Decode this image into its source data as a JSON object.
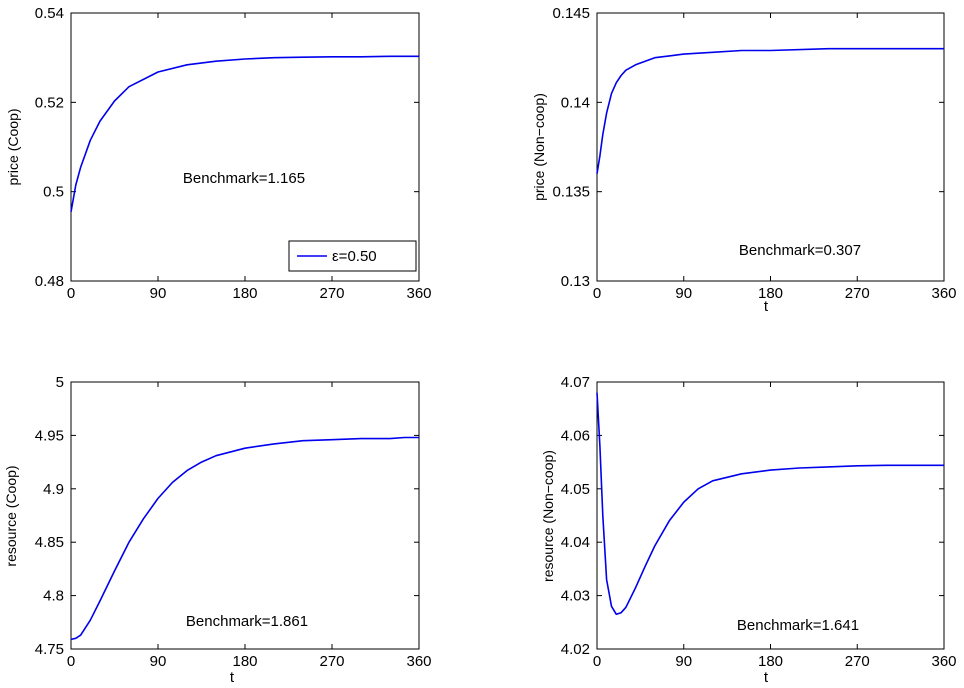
{
  "chart_data": [
    {
      "type": "line",
      "xlabel": "",
      "ylabel": "price (Coop)",
      "xlim": [
        0,
        360
      ],
      "ylim": [
        0.48,
        0.54
      ],
      "x_ticks": [
        "0",
        "90",
        "180",
        "270",
        "360"
      ],
      "y_ticks": [
        "0.48",
        "0.5",
        "0.52",
        "0.54"
      ],
      "annotation": "Benchmark=1.165",
      "legend": {
        "position": "bottom-right",
        "entries": [
          "ε=0.50"
        ]
      },
      "series": [
        {
          "color": "#0000ee",
          "x": [
            0,
            5,
            10,
            20,
            30,
            45,
            60,
            90,
            120,
            150,
            180,
            210,
            240,
            270,
            300,
            330,
            345,
            360
          ],
          "y": [
            0.4955,
            0.5015,
            0.5055,
            0.5115,
            0.5158,
            0.5203,
            0.5235,
            0.5268,
            0.5284,
            0.5292,
            0.5297,
            0.53,
            0.5301,
            0.5302,
            0.5302,
            0.5303,
            0.5303,
            0.5303
          ]
        }
      ]
    },
    {
      "type": "line",
      "xlabel": "t",
      "ylabel": "price (Non−coop)",
      "xlim": [
        0,
        360
      ],
      "ylim": [
        0.13,
        0.145
      ],
      "x_ticks": [
        "0",
        "90",
        "180",
        "270",
        "360"
      ],
      "y_ticks": [
        "0.13",
        "0.135",
        "0.14",
        "0.145"
      ],
      "annotation": "Benchmark=0.307",
      "series": [
        {
          "color": "#0000ee",
          "x": [
            0,
            3,
            6,
            10,
            15,
            20,
            25,
            30,
            40,
            50,
            60,
            75,
            90,
            120,
            150,
            180,
            240,
            300,
            360
          ],
          "y": [
            0.136,
            0.137,
            0.1382,
            0.1394,
            0.1405,
            0.1411,
            0.1415,
            0.1418,
            0.1421,
            0.1423,
            0.1425,
            0.1426,
            0.1427,
            0.1428,
            0.1429,
            0.1429,
            0.143,
            0.143,
            0.143
          ]
        }
      ]
    },
    {
      "type": "line",
      "xlabel": "t",
      "ylabel": "resource (Coop)",
      "xlim": [
        0,
        360
      ],
      "ylim": [
        4.75,
        5.0
      ],
      "x_ticks": [
        "0",
        "90",
        "180",
        "270",
        "360"
      ],
      "y_ticks": [
        "4.75",
        "4.8",
        "4.85",
        "4.9",
        "4.95",
        "5"
      ],
      "annotation": "Benchmark=1.861",
      "series": [
        {
          "color": "#0000ee",
          "x": [
            0,
            5,
            10,
            20,
            30,
            45,
            60,
            75,
            90,
            105,
            120,
            135,
            150,
            180,
            210,
            240,
            270,
            300,
            330,
            345,
            360
          ],
          "y": [
            4.759,
            4.76,
            4.763,
            4.777,
            4.795,
            4.823,
            4.85,
            4.872,
            4.891,
            4.906,
            4.917,
            4.925,
            4.931,
            4.938,
            4.942,
            4.945,
            4.946,
            4.947,
            4.947,
            4.948,
            4.948
          ]
        }
      ]
    },
    {
      "type": "line",
      "xlabel": "t",
      "ylabel": "resource (Non−coop)",
      "xlim": [
        0,
        360
      ],
      "ylim": [
        4.02,
        4.07
      ],
      "x_ticks": [
        "0",
        "90",
        "180",
        "270",
        "360"
      ],
      "y_ticks": [
        "4.02",
        "4.03",
        "4.04",
        "4.05",
        "4.06",
        "4.07"
      ],
      "annotation": "Benchmark=1.641",
      "series": [
        {
          "color": "#0000ee",
          "x": [
            0,
            3,
            6,
            10,
            15,
            20,
            25,
            30,
            40,
            50,
            60,
            75,
            90,
            105,
            120,
            150,
            180,
            210,
            240,
            270,
            300,
            330,
            360
          ],
          "y": [
            4.068,
            4.058,
            4.045,
            4.033,
            4.028,
            4.0265,
            4.0268,
            4.0278,
            4.0315,
            4.0355,
            4.0393,
            4.044,
            4.0475,
            4.05,
            4.0515,
            4.0528,
            4.0535,
            4.0539,
            4.0541,
            4.0543,
            4.0544,
            4.0544,
            4.0544
          ]
        }
      ]
    }
  ]
}
